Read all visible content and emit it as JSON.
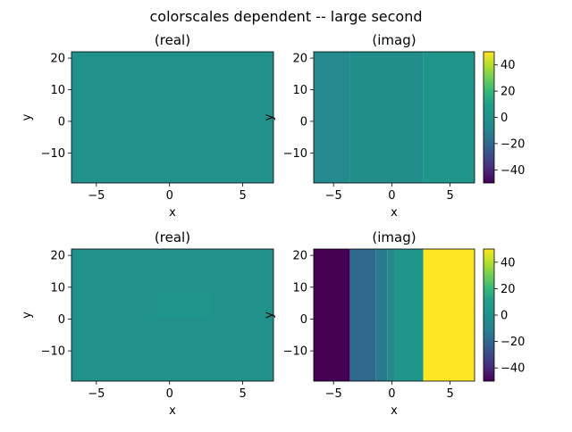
{
  "figure": {
    "title": "colorscales dependent -- large second"
  },
  "colors": {
    "neutral": "#26828e",
    "viridis_top": "#fde725",
    "viridis_bottom": "#440154"
  },
  "chart_data": [
    {
      "type": "heatmap",
      "title": "(real)",
      "xlabel": "x",
      "ylabel": "y",
      "xlim": [
        -6.7,
        7.1
      ],
      "ylim": [
        -19.5,
        22
      ],
      "xticks": [
        "−5",
        "0",
        "5"
      ],
      "xtick_values": [
        -5,
        0,
        5
      ],
      "yticks": [
        "−10",
        "0",
        "10",
        "20"
      ],
      "ytick_values": [
        -10,
        0,
        10,
        20
      ],
      "clim": [
        -50,
        50
      ],
      "cells": [
        {
          "x0": -6.7,
          "x1": 7.1,
          "y0": -19.5,
          "y1": 22,
          "value": 0
        }
      ]
    },
    {
      "type": "heatmap",
      "title": "(imag)",
      "xlabel": "x",
      "ylabel": "y",
      "xlim": [
        -6.7,
        7.1
      ],
      "ylim": [
        -19.5,
        22
      ],
      "xticks": [
        "−5",
        "0",
        "5"
      ],
      "xtick_values": [
        -5,
        0,
        5
      ],
      "yticks": [
        "−10",
        "0",
        "10",
        "20"
      ],
      "ytick_values": [
        -10,
        0,
        10,
        20
      ],
      "clim": [
        -50,
        50
      ],
      "colorbar": {
        "ticks": [
          "−40",
          "−20",
          "0",
          "20",
          "40"
        ],
        "tick_values": [
          -40,
          -20,
          0,
          20,
          40
        ]
      },
      "cells": [
        {
          "x0": -6.7,
          "x1": -3.6,
          "y0": -19.5,
          "y1": 22,
          "value": -5
        },
        {
          "x0": -3.6,
          "x1": 2.7,
          "y0": -19.5,
          "y1": 22,
          "value": -2
        },
        {
          "x0": 2.7,
          "x1": 7.1,
          "y0": -19.5,
          "y1": 22,
          "value": 4
        }
      ]
    },
    {
      "type": "heatmap",
      "title": "(real)",
      "xlabel": "x",
      "ylabel": "y",
      "xlim": [
        -6.7,
        7.1
      ],
      "ylim": [
        -19.5,
        22
      ],
      "xticks": [
        "−5",
        "0",
        "5"
      ],
      "xtick_values": [
        -5,
        0,
        5
      ],
      "yticks": [
        "−10",
        "0",
        "10",
        "20"
      ],
      "ytick_values": [
        -10,
        0,
        10,
        20
      ],
      "clim": [
        -50,
        50
      ],
      "cells": [
        {
          "x0": -6.7,
          "x1": 7.1,
          "y0": -19.5,
          "y1": 22,
          "value": 0
        },
        {
          "x0": -1.6,
          "x1": -0.8,
          "y0": 0.5,
          "y1": 8.0,
          "value": 1
        },
        {
          "x0": -0.8,
          "x1": 2.8,
          "y0": 0.5,
          "y1": 8.0,
          "value": 3
        }
      ]
    },
    {
      "type": "heatmap",
      "title": "(imag)",
      "xlabel": "x",
      "ylabel": "y",
      "xlim": [
        -6.7,
        7.1
      ],
      "ylim": [
        -19.5,
        22
      ],
      "xticks": [
        "−5",
        "0",
        "5"
      ],
      "xtick_values": [
        -5,
        0,
        5
      ],
      "yticks": [
        "−10",
        "0",
        "10",
        "20"
      ],
      "ytick_values": [
        -10,
        0,
        10,
        20
      ],
      "clim": [
        -50,
        50
      ],
      "colorbar": {
        "ticks": [
          "−40",
          "−20",
          "0",
          "20",
          "40"
        ],
        "tick_values": [
          -40,
          -20,
          0,
          20,
          40
        ]
      },
      "cells": [
        {
          "x0": -6.7,
          "x1": -3.6,
          "y0": -19.5,
          "y1": 22,
          "value": -50
        },
        {
          "x0": -3.6,
          "x1": -1.4,
          "y0": -19.5,
          "y1": 22,
          "value": -20
        },
        {
          "x0": -1.4,
          "x1": -0.4,
          "y0": -19.5,
          "y1": 22,
          "value": -14
        },
        {
          "x0": -0.4,
          "x1": 0.2,
          "y0": -19.5,
          "y1": 22,
          "value": -6
        },
        {
          "x0": 0.2,
          "x1": 2.7,
          "y0": -19.5,
          "y1": 22,
          "value": 4
        },
        {
          "x0": 2.7,
          "x1": 7.1,
          "y0": -19.5,
          "y1": 22,
          "value": 50
        }
      ]
    }
  ]
}
